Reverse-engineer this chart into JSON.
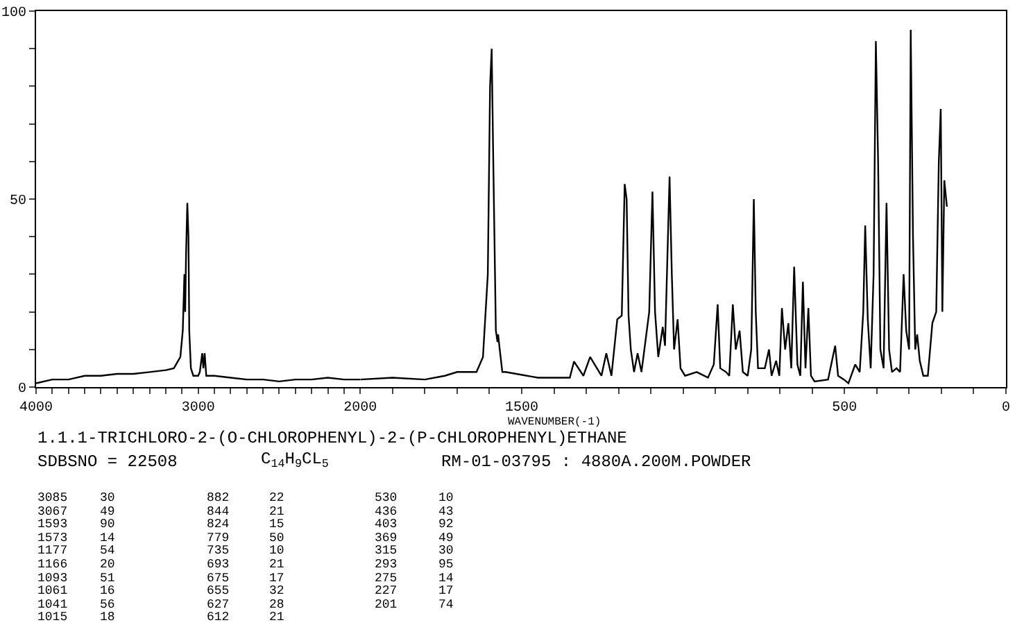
{
  "chart_data": [
    {
      "type": "line",
      "title": "1.1.1-TRICHLORO-2-(O-CHLOROPHENYL)-2-(P-CHLOROPHENYL)ETHANE",
      "x": [
        4000,
        3900,
        3800,
        3700,
        3600,
        3500,
        3400,
        3300,
        3200,
        3150,
        3110,
        3095,
        3085,
        3080,
        3075,
        3067,
        3060,
        3055,
        3045,
        3030,
        3000,
        2990,
        2975,
        2968,
        2960,
        2950,
        2900,
        2800,
        2700,
        2600,
        2500,
        2400,
        2300,
        2200,
        2100,
        2000
      ],
      "series": [
        {
          "color": "#000000",
          "values": [
            1,
            2,
            2,
            3,
            3,
            3.5,
            3.5,
            4,
            4.5,
            5,
            8,
            15,
            30,
            20,
            35,
            49,
            40,
            15,
            5,
            3,
            3,
            4,
            9,
            5,
            9,
            3,
            3,
            2.5,
            2,
            2,
            1.5,
            2,
            2,
            2.5,
            2,
            2
          ]
        }
      ],
      "xlim": [
        4000,
        2000
      ],
      "ylim": [
        0,
        100
      ],
      "xticks": [
        4000,
        {
          "value": 3900,
          "label": null
        },
        {
          "value": 3800,
          "label": null
        },
        {
          "value": 3700,
          "label": null
        },
        {
          "value": 3600,
          "label": null
        },
        {
          "value": 3500,
          "label": null
        },
        {
          "value": 3400,
          "label": null
        },
        {
          "value": 3300,
          "label": null
        },
        {
          "value": 3200,
          "label": null
        },
        {
          "value": 3100,
          "label": null
        },
        3000,
        {
          "value": 2900,
          "label": null
        },
        {
          "value": 2800,
          "label": null
        },
        {
          "value": 2700,
          "label": null
        },
        {
          "value": 2600,
          "label": null
        },
        {
          "value": 2500,
          "label": null
        },
        {
          "value": 2400,
          "label": null
        },
        {
          "value": 2300,
          "label": null
        },
        {
          "value": 2200,
          "label": null
        },
        {
          "value": 2100,
          "label": null
        },
        2000
      ],
      "yticks": [
        0,
        {
          "value": 10,
          "label": null
        },
        {
          "value": 20,
          "label": null
        },
        {
          "value": 30,
          "label": null
        },
        {
          "value": 40,
          "label": null
        },
        50,
        {
          "value": 60,
          "label": null
        },
        {
          "value": 70,
          "label": null
        },
        {
          "value": 80,
          "label": null
        },
        {
          "value": 90,
          "label": null
        },
        100
      ],
      "marker": "none",
      "line_style": "solid",
      "annotations": [
        "SDBSNO = 22508",
        "C$_{14}$H$_{9}$CL$_{5}$",
        "RM-01-03795 : 4880A.200M.POWDER",
        "3085",
        "30",
        "3067",
        "49",
        "1593",
        "90",
        "1573",
        "14",
        "1177",
        "54",
        "1166",
        "20",
        "1093",
        "51",
        "1061",
        "16",
        "1041",
        "56",
        "1015",
        "18",
        "882",
        "22",
        "844",
        "21",
        "824",
        "15",
        "779",
        "50",
        "735",
        "10",
        "693",
        "21",
        "675",
        "17",
        "655",
        "32",
        "627",
        "28",
        "612",
        "21",
        "530",
        "10",
        "436",
        "43",
        "403",
        "92",
        "369",
        "49",
        "315",
        "30",
        "293",
        "95",
        "275",
        "14",
        "227",
        "17",
        "201",
        "74"
      ]
    },
    {
      "type": "line",
      "xlabel": "WAVENUMBER(-1)",
      "x": [
        2000,
        1900,
        1800,
        1738,
        1700,
        1640,
        1620,
        1605,
        1598,
        1593,
        1588,
        1580,
        1575,
        1573,
        1568,
        1560,
        1550,
        1450,
        1351,
        1338,
        1309,
        1288,
        1267,
        1253,
        1238,
        1222,
        1204,
        1190,
        1181,
        1175,
        1169,
        1162,
        1152,
        1141,
        1129,
        1105,
        1095,
        1087,
        1077,
        1063,
        1056,
        1042,
        1035,
        1028,
        1017,
        1008,
        994,
        958,
        923,
        905,
        893,
        885,
        867,
        857,
        846,
        837,
        825,
        815,
        800,
        789,
        781,
        775,
        768,
        747,
        734,
        726,
        712,
        702,
        694,
        684,
        674,
        665,
        656,
        646,
        637,
        629,
        621,
        612,
        604,
        593,
        551,
        529,
        520,
        502,
        488,
        467,
        453,
        442,
        436,
        428,
        419,
        410,
        403,
        396,
        389,
        379,
        370,
        362,
        353,
        339,
        328,
        317,
        309,
        300,
        295,
        288,
        281,
        275,
        267,
        256,
        242,
        228,
        216,
        208,
        202,
        197,
        191,
        183
      ],
      "series": [
        {
          "color": "#000000",
          "values": [
            2,
            2.5,
            2,
            3,
            4,
            4,
            8,
            30,
            80,
            90,
            60,
            15,
            12,
            14,
            10,
            4,
            4,
            2.5,
            2.5,
            6.8,
            3,
            8,
            5,
            3,
            9,
            3,
            18,
            19,
            54,
            50,
            19,
            10,
            4,
            9,
            4,
            20,
            52,
            20,
            8,
            16,
            11,
            56,
            30,
            10,
            18,
            5,
            3,
            4,
            2.5,
            6,
            22,
            5,
            4,
            3,
            22,
            10,
            15,
            4,
            3,
            10,
            50,
            20,
            5,
            5,
            10,
            3,
            7,
            3,
            21,
            10,
            17,
            5,
            32,
            6,
            3,
            28,
            5,
            21,
            3,
            1.5,
            2,
            11,
            3,
            2,
            1,
            6,
            4,
            20,
            43,
            18,
            5,
            30,
            92,
            60,
            10,
            5,
            49,
            10,
            4,
            5,
            4,
            30,
            15,
            10,
            95,
            40,
            10,
            14,
            7,
            3,
            3,
            17,
            20,
            60,
            74,
            20,
            55,
            48
          ]
        }
      ],
      "xlim": [
        2000,
        0
      ],
      "ylim": [
        0,
        100
      ],
      "xticks": [
        {
          "value": 1900,
          "label": null
        },
        {
          "value": 1800,
          "label": null
        },
        {
          "value": 1700,
          "label": null
        },
        {
          "value": 1600,
          "label": null
        },
        1500,
        {
          "value": 1400,
          "label": null
        },
        {
          "value": 1300,
          "label": null
        },
        {
          "value": 1200,
          "label": null
        },
        {
          "value": 1100,
          "label": null
        },
        {
          "value": 1000,
          "label": null
        },
        {
          "value": 900,
          "label": null
        },
        {
          "value": 800,
          "label": null
        },
        {
          "value": 700,
          "label": null
        },
        {
          "value": 600,
          "label": null
        },
        500,
        {
          "value": 400,
          "label": null
        },
        {
          "value": 300,
          "label": null
        },
        {
          "value": 200,
          "label": null
        },
        {
          "value": 100,
          "label": null
        },
        0
      ],
      "tick_labels": "x",
      "marker": "none",
      "line_style": "solid"
    }
  ]
}
